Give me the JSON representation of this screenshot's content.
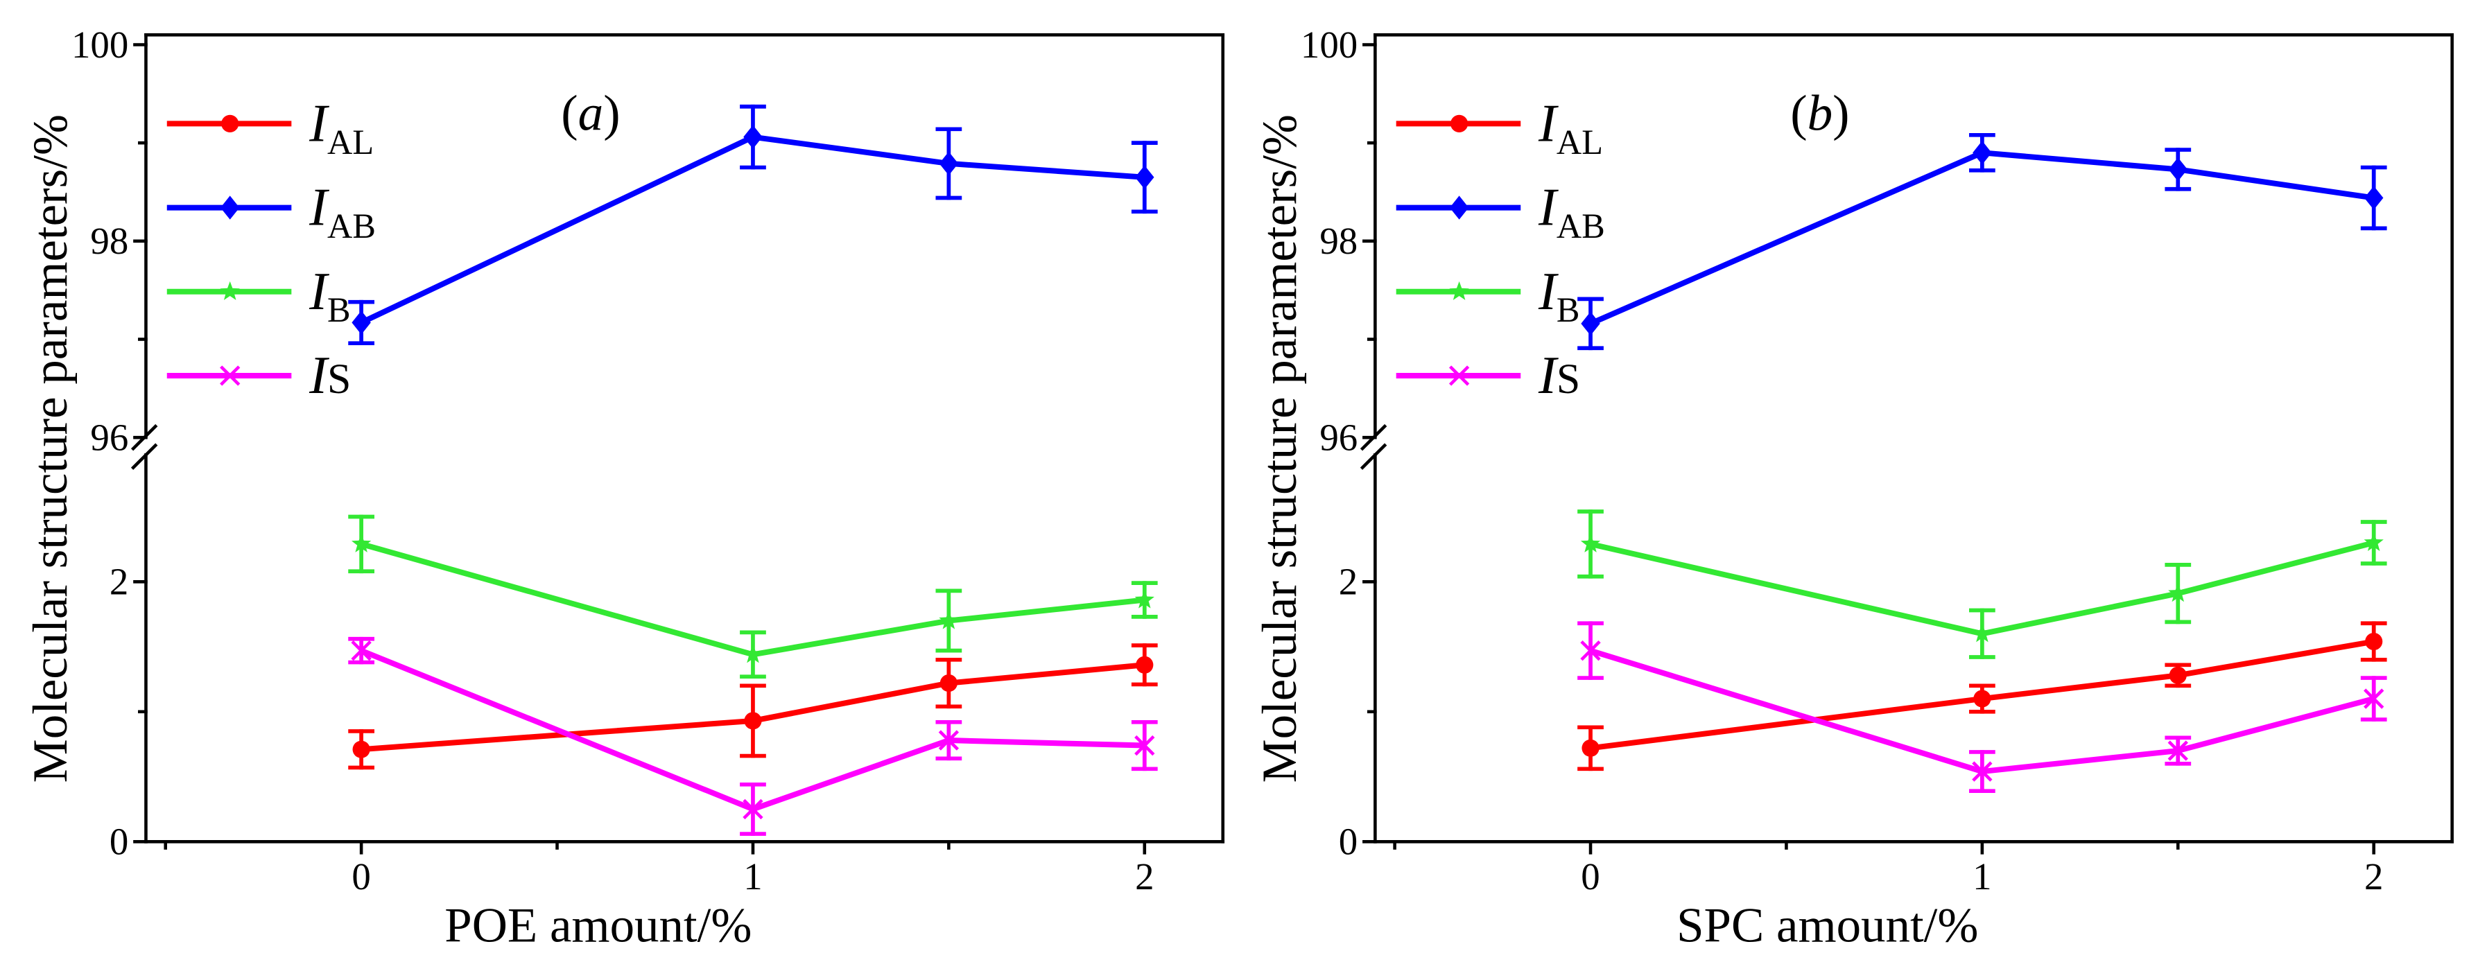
{
  "chart_data": [
    {
      "type": "line",
      "panel_label": {
        "open": "(",
        "letter": "a",
        "close": ")"
      },
      "xlabel": "POE amount/%",
      "ylabel": "Molecular structure parameters/%",
      "xlim": [
        -0.55,
        2.2
      ],
      "x_ticks": [
        {
          "value": 0,
          "label": "0"
        },
        {
          "value": 1,
          "label": "1"
        },
        {
          "value": 2,
          "label": "2"
        }
      ],
      "x_minor_ticks": [
        -0.5,
        0.5,
        1.5
      ],
      "y_upper": {
        "lim": [
          96,
          100.1
        ],
        "ticks": [
          {
            "value": 96,
            "label": "96"
          },
          {
            "value": 98,
            "label": "98"
          },
          {
            "value": 100,
            "label": "100"
          }
        ],
        "minor_ticks": [
          97,
          99
        ]
      },
      "y_lower": {
        "lim": [
          0,
          3
        ],
        "ticks": [
          {
            "value": 0,
            "label": "0"
          },
          {
            "value": 2,
            "label": "2"
          }
        ],
        "minor_ticks": [
          1
        ]
      },
      "x": [
        0,
        1,
        1.5,
        2
      ],
      "series": [
        {
          "label_italic": "I",
          "label_sub": "AL",
          "color": "#ff0000",
          "marker": "circle",
          "values": [
            0.71,
            0.93,
            1.22,
            1.36
          ],
          "errors": [
            0.14,
            0.27,
            0.18,
            0.15
          ]
        },
        {
          "label_italic": "I",
          "label_sub": "AB",
          "color": "#0000ff",
          "marker": "diamond",
          "values": [
            97.17,
            99.06,
            98.79,
            98.65
          ],
          "errors": [
            0.21,
            0.31,
            0.35,
            0.35
          ]
        },
        {
          "label_italic": "I",
          "label_sub": "B",
          "color": "#33e833",
          "marker": "star",
          "values": [
            2.29,
            1.44,
            1.7,
            1.86
          ],
          "errors": [
            0.21,
            0.17,
            0.23,
            0.13
          ]
        },
        {
          "label_italic": "I",
          "label_plain": "S",
          "color": "#ff00ff",
          "marker": "cross",
          "values": [
            1.47,
            0.25,
            0.78,
            0.74
          ],
          "errors": [
            0.09,
            0.19,
            0.14,
            0.18
          ]
        }
      ]
    },
    {
      "type": "line",
      "panel_label": {
        "open": "(",
        "letter": "b",
        "close": ")"
      },
      "xlabel": "SPC amount/%",
      "ylabel": "Molecular structure parameters/%",
      "xlim": [
        -0.55,
        2.2
      ],
      "x_ticks": [
        {
          "value": 0,
          "label": "0"
        },
        {
          "value": 1,
          "label": "1"
        },
        {
          "value": 2,
          "label": "2"
        }
      ],
      "x_minor_ticks": [
        -0.5,
        0.5,
        1.5
      ],
      "y_upper": {
        "lim": [
          96,
          100.1
        ],
        "ticks": [
          {
            "value": 96,
            "label": "96"
          },
          {
            "value": 98,
            "label": "98"
          },
          {
            "value": 100,
            "label": "100"
          }
        ],
        "minor_ticks": [
          97,
          99
        ]
      },
      "y_lower": {
        "lim": [
          0,
          3
        ],
        "ticks": [
          {
            "value": 0,
            "label": "0"
          },
          {
            "value": 2,
            "label": "2"
          }
        ],
        "minor_ticks": [
          1
        ]
      },
      "x": [
        0,
        1,
        1.5,
        2
      ],
      "series": [
        {
          "label_italic": "I",
          "label_sub": "AL",
          "color": "#ff0000",
          "marker": "circle",
          "values": [
            0.72,
            1.1,
            1.28,
            1.54
          ],
          "errors": [
            0.16,
            0.1,
            0.08,
            0.14
          ]
        },
        {
          "label_italic": "I",
          "label_sub": "AB",
          "color": "#0000ff",
          "marker": "diamond",
          "values": [
            97.16,
            98.9,
            98.73,
            98.44
          ],
          "errors": [
            0.25,
            0.18,
            0.2,
            0.31
          ]
        },
        {
          "label_italic": "I",
          "label_sub": "B",
          "color": "#33e833",
          "marker": "star",
          "values": [
            2.29,
            1.6,
            1.91,
            2.3
          ],
          "errors": [
            0.25,
            0.18,
            0.22,
            0.16
          ]
        },
        {
          "label_italic": "I",
          "label_plain": "S",
          "color": "#ff00ff",
          "marker": "cross",
          "values": [
            1.47,
            0.54,
            0.7,
            1.1
          ],
          "errors": [
            0.21,
            0.15,
            0.1,
            0.16
          ]
        }
      ]
    }
  ]
}
